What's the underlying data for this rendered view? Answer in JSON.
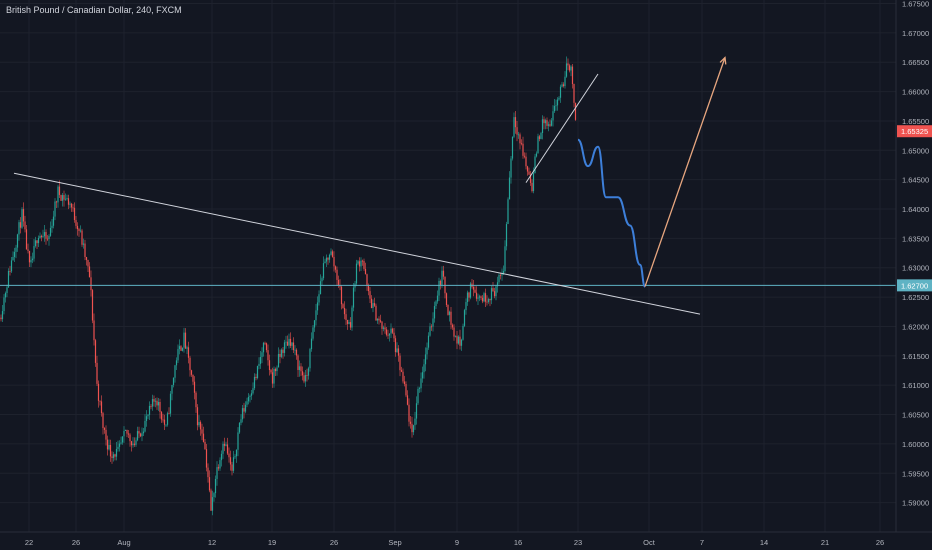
{
  "colors": {
    "background": "#131722",
    "up_candle": "#26a69a",
    "down_candle": "#ef5350",
    "trendline": "#d1d4dc",
    "support_line": "#5fb3c4",
    "projection_down": "#3d7fd9",
    "projection_up": "#e7a67f",
    "price_label_bg": "#ef5350",
    "level_label_bg": "#5fb3c4"
  },
  "chart_data": {
    "type": "candlestick",
    "title": "British Pound / Canadian Dollar, 240, FXCM",
    "x_tick_labels": [
      "22",
      "26",
      "Aug",
      "12",
      "19",
      "26",
      "Sep",
      "9",
      "16",
      "23",
      "Oct",
      "7",
      "14",
      "21",
      "26"
    ],
    "y_tick_labels": [
      "1.67500",
      "1.67000",
      "1.66500",
      "1.66000",
      "1.65500",
      "1.65000",
      "1.64500",
      "1.64000",
      "1.63500",
      "1.63000",
      "1.62500",
      "1.62000",
      "1.61500",
      "1.61000",
      "1.60500",
      "1.60000",
      "1.59500",
      "1.59000"
    ],
    "y_ticks": [
      1.675,
      1.67,
      1.665,
      1.66,
      1.655,
      1.65,
      1.645,
      1.64,
      1.635,
      1.63,
      1.625,
      1.62,
      1.615,
      1.61,
      1.605,
      1.6,
      1.595,
      1.59
    ],
    "ylim": [
      1.5875,
      1.6765
    ],
    "current_price": "1.65325",
    "current_price_value": 1.65325,
    "marked_level": "1.62700",
    "marked_level_value": 1.627,
    "price_path": [
      [
        0,
        1.6215
      ],
      [
        10,
        1.63
      ],
      [
        22,
        1.639
      ],
      [
        30,
        1.6295
      ],
      [
        38,
        1.636
      ],
      [
        48,
        1.6345
      ],
      [
        58,
        1.643
      ],
      [
        70,
        1.641
      ],
      [
        80,
        1.636
      ],
      [
        90,
        1.628
      ],
      [
        97,
        1.61
      ],
      [
        103,
        1.603
      ],
      [
        110,
        1.5985
      ],
      [
        118,
        1.5985
      ],
      [
        126,
        1.602
      ],
      [
        134,
        1.6
      ],
      [
        146,
        1.604
      ],
      [
        156,
        1.608
      ],
      [
        166,
        1.6025
      ],
      [
        176,
        1.6145
      ],
      [
        184,
        1.618
      ],
      [
        192,
        1.611
      ],
      [
        198,
        1.6035
      ],
      [
        203,
        1.602
      ],
      [
        208,
        1.5945
      ],
      [
        211,
        1.5885
      ],
      [
        216,
        1.595
      ],
      [
        224,
        1.601
      ],
      [
        232,
        1.595
      ],
      [
        240,
        1.604
      ],
      [
        248,
        1.608
      ],
      [
        256,
        1.6115
      ],
      [
        264,
        1.617
      ],
      [
        272,
        1.611
      ],
      [
        282,
        1.616
      ],
      [
        290,
        1.618
      ],
      [
        298,
        1.6135
      ],
      [
        306,
        1.6105
      ],
      [
        314,
        1.6205
      ],
      [
        322,
        1.629
      ],
      [
        330,
        1.633
      ],
      [
        338,
        1.628
      ],
      [
        344,
        1.622
      ],
      [
        350,
        1.62
      ],
      [
        356,
        1.63
      ],
      [
        362,
        1.632
      ],
      [
        368,
        1.6255
      ],
      [
        376,
        1.622
      ],
      [
        384,
        1.619
      ],
      [
        392,
        1.619
      ],
      [
        400,
        1.613
      ],
      [
        406,
        1.608
      ],
      [
        412,
        1.601
      ],
      [
        418,
        1.609
      ],
      [
        424,
        1.614
      ],
      [
        430,
        1.619
      ],
      [
        436,
        1.625
      ],
      [
        442,
        1.629
      ],
      [
        448,
        1.623
      ],
      [
        454,
        1.6185
      ],
      [
        460,
        1.617
      ],
      [
        466,
        1.624
      ],
      [
        472,
        1.6275
      ],
      [
        478,
        1.625
      ],
      [
        486,
        1.625
      ],
      [
        494,
        1.626
      ],
      [
        500,
        1.628
      ],
      [
        504,
        1.6305
      ],
      [
        508,
        1.642
      ],
      [
        514,
        1.656
      ],
      [
        520,
        1.6515
      ],
      [
        526,
        1.6475
      ],
      [
        532,
        1.644
      ],
      [
        538,
        1.652
      ],
      [
        544,
        1.655
      ],
      [
        550,
        1.6535
      ],
      [
        556,
        1.658
      ],
      [
        562,
        1.6605
      ],
      [
        568,
        1.665
      ],
      [
        572,
        1.663
      ],
      [
        576,
        1.6545
      ]
    ],
    "projection_down_path": [
      [
        578,
        1.6518
      ],
      [
        588,
        1.6473
      ],
      [
        598,
        1.6506
      ],
      [
        606,
        1.642
      ],
      [
        618,
        1.642
      ],
      [
        630,
        1.6372
      ],
      [
        640,
        1.6305
      ],
      [
        645,
        1.6268
      ]
    ],
    "projection_up_path": [
      [
        645,
        1.6268
      ],
      [
        725,
        1.6658
      ]
    ],
    "trendline_long": [
      [
        14,
        1.6461
      ],
      [
        700,
        1.6221
      ]
    ],
    "trendline_short": [
      [
        526,
        1.6445
      ],
      [
        598,
        1.663
      ]
    ]
  }
}
